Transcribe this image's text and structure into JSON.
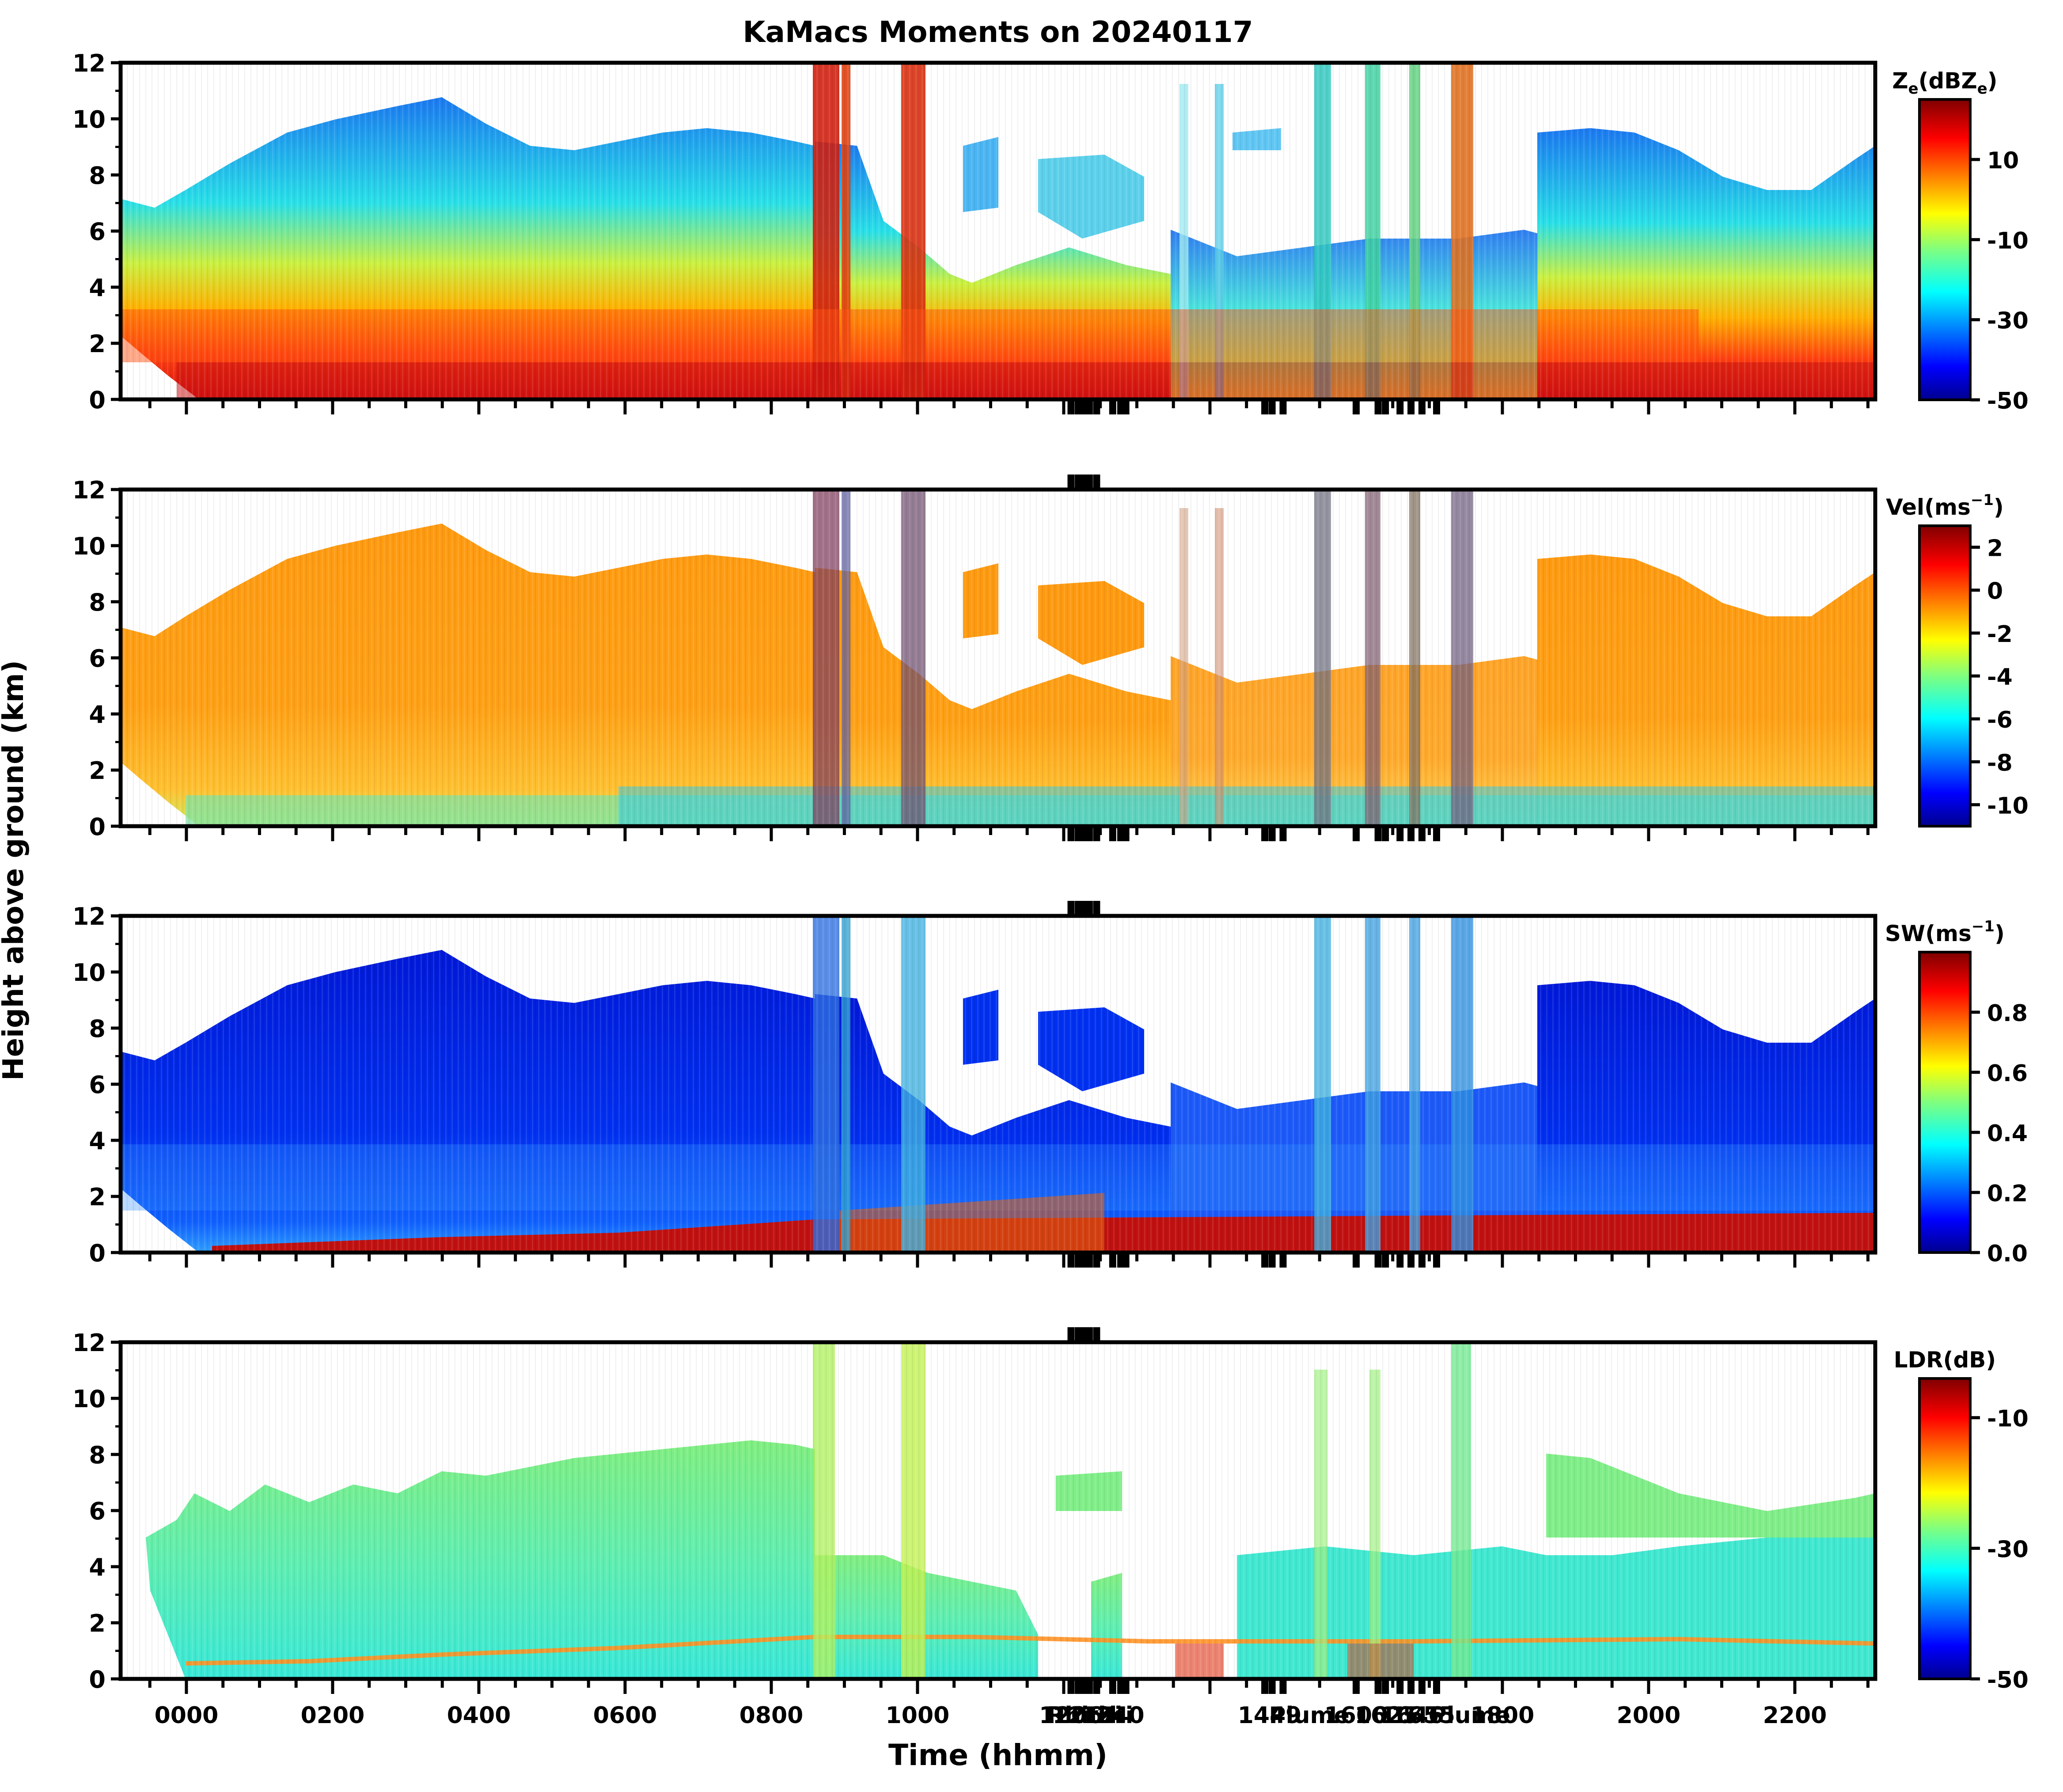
{
  "figure": {
    "title": "KaMacs Moments on 20240117",
    "ylabel": "Height above ground (km)",
    "xlabel": "Time (hhmm)"
  },
  "chart_data": [
    {
      "type": "heatmap",
      "panel": "reflectivity",
      "colorbar_label": "Z_e(dBZ_e)",
      "colorbar_label_parts": {
        "base": "Z",
        "sub": "e",
        "mid": "(dBZ",
        "sub2": "e",
        "end": ")"
      },
      "clim": [
        -50,
        25
      ],
      "colorbar_ticks": [
        10,
        -10,
        -30,
        -50
      ],
      "ylim": [
        0,
        12
      ],
      "y_ticks": [
        0,
        2,
        4,
        6,
        8,
        10,
        12
      ]
    },
    {
      "type": "heatmap",
      "panel": "velocity",
      "colorbar_label": "Vel(ms⁻¹)",
      "colorbar_label_parts": {
        "base": "Vel(ms",
        "sup": "−1",
        "end": ")"
      },
      "clim": [
        -11,
        3
      ],
      "colorbar_ticks": [
        2,
        0,
        -2,
        -4,
        -6,
        -8,
        -10
      ],
      "ylim": [
        0,
        12
      ],
      "y_ticks": [
        0,
        2,
        4,
        6,
        8,
        10,
        12
      ]
    },
    {
      "type": "heatmap",
      "panel": "spectrum_width",
      "colorbar_label": "SW(ms⁻¹)",
      "colorbar_label_parts": {
        "base": "SW(ms",
        "sup": "−1",
        "end": ")"
      },
      "clim": [
        0,
        1
      ],
      "colorbar_ticks": [
        "0.8",
        "0.6",
        "0.4",
        "0.2",
        "0.0"
      ],
      "ylim": [
        0,
        12
      ],
      "y_ticks": [
        0,
        2,
        4,
        6,
        8,
        10,
        12
      ]
    },
    {
      "type": "heatmap",
      "panel": "ldr",
      "colorbar_label": "LDR(dB)",
      "colorbar_label_parts": {
        "base": "LDR(dB)"
      },
      "clim": [
        -50,
        -4
      ],
      "colorbar_ticks": [
        -10,
        -30,
        -50
      ],
      "ylim": [
        0,
        12
      ],
      "y_ticks": [
        0,
        2,
        4,
        6,
        8,
        10,
        12
      ]
    }
  ],
  "x_axis": {
    "range_hours": [
      -0.9,
      23.1
    ],
    "tick_labels": [
      "0000",
      "0200",
      "0400",
      "0600",
      "0800",
      "1000",
      "1800",
      "2000",
      "2200"
    ],
    "overlapping_labels": [
      "1206",
      "1217",
      "1240",
      "1449",
      "1600",
      "1625",
      "1646",
      "1655"
    ],
    "rhi_labels": [
      "Rhi",
      "rhi",
      "rhi",
      "Plume",
      "Plume"
    ]
  }
}
